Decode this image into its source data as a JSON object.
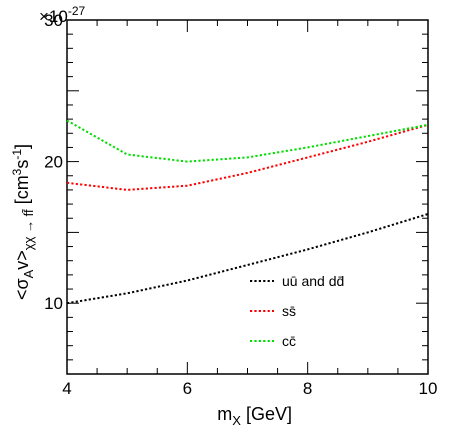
{
  "chart_data": {
    "type": "line",
    "title": "",
    "xlabel_main": "m",
    "xlabel_sub": "X",
    "xlabel_unit": " [GeV]",
    "ylabel_main": "<σ",
    "ylabel_sub1": "A",
    "ylabel_mid": "v>",
    "ylabel_sub2": "χχ → ff̄",
    "ylabel_unit_pre": " [cm",
    "ylabel_unit_sup1": "3",
    "ylabel_unit_mid": "s",
    "ylabel_unit_sup2": "-1",
    "ylabel_unit_post": "]",
    "y_multiplier_base": "×10",
    "y_multiplier_exp": "-27",
    "xlim": [
      4,
      10
    ],
    "ylim": [
      5,
      30
    ],
    "xticks": [
      4,
      6,
      8,
      10
    ],
    "xtick_labels": [
      "4",
      "6",
      "8",
      "10"
    ],
    "yticks": [
      10,
      20,
      30
    ],
    "ytick_labels": [
      "10",
      "20",
      "30"
    ],
    "grid": false,
    "legend_position": "bottom-right",
    "series": [
      {
        "name_parts": [
          "u",
          "ū",
          " and ",
          "d",
          "d̄"
        ],
        "color": "#000000",
        "x": [
          4,
          5,
          6,
          7,
          8,
          9,
          10
        ],
        "y": [
          10.0,
          10.7,
          11.6,
          12.7,
          13.8,
          15.0,
          16.3
        ]
      },
      {
        "name_parts": [
          "s",
          "s̄"
        ],
        "color": "#ff0000",
        "x": [
          4,
          5,
          6,
          7,
          8,
          9,
          10
        ],
        "y": [
          18.5,
          18.0,
          18.3,
          19.2,
          20.3,
          21.4,
          22.6
        ]
      },
      {
        "name_parts": [
          "c",
          "c̄"
        ],
        "color": "#00dd00",
        "x": [
          4,
          5,
          6,
          7,
          8,
          9,
          10
        ],
        "y": [
          22.9,
          20.5,
          20.0,
          20.3,
          21.0,
          21.8,
          22.6
        ]
      }
    ]
  }
}
